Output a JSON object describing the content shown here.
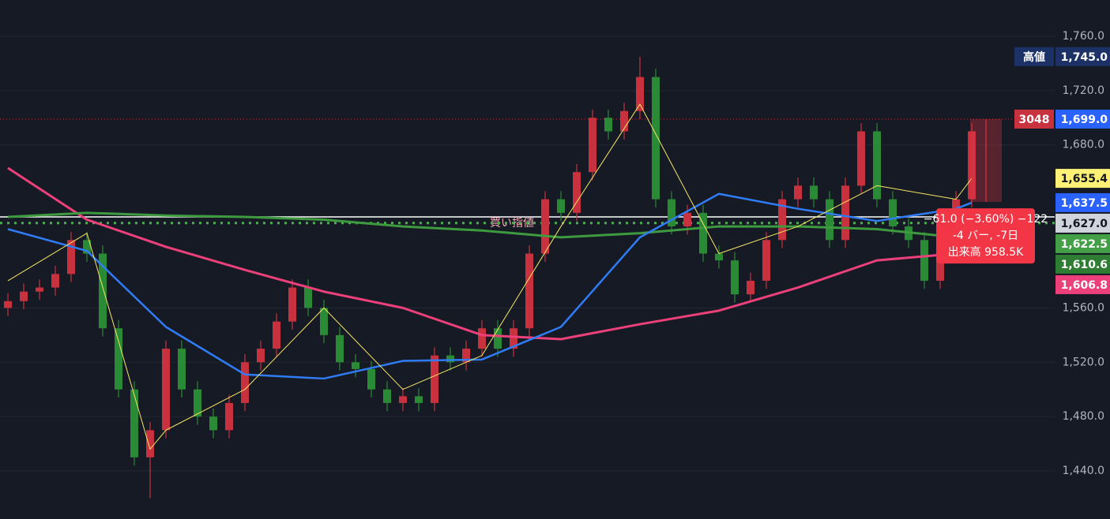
{
  "chart_data": {
    "type": "candlestick",
    "up_color": "#c8323f",
    "down_color": "#2b8a36",
    "ylim": [
      1404.6,
      1786.7
    ],
    "yticks": [
      {
        "value": 1440,
        "label": "1,440.0"
      },
      {
        "value": 1480,
        "label": "1,480.0"
      },
      {
        "value": 1520,
        "label": "1,520.0"
      },
      {
        "value": 1560,
        "label": "1,560.0"
      },
      {
        "value": 1680,
        "label": "1,680.0"
      },
      {
        "value": 1720,
        "label": "1,720.0"
      },
      {
        "value": 1760,
        "label": "1,760.0"
      }
    ],
    "grid": true,
    "open": [
      1560,
      1565,
      1572,
      1575,
      1585,
      1610,
      1600,
      1545,
      1500,
      1450,
      1470,
      1530,
      1500,
      1480,
      1470,
      1490,
      1520,
      1530,
      1550,
      1575,
      1560,
      1540,
      1520,
      1515,
      1500,
      1490,
      1495,
      1490,
      1525,
      1520,
      1530,
      1545,
      1530,
      1545,
      1600,
      1640,
      1630,
      1660,
      1700,
      1690,
      1705,
      1730,
      1640,
      1620,
      1630,
      1600,
      1595,
      1570,
      1580,
      1610,
      1640,
      1650,
      1640,
      1610,
      1650,
      1690,
      1640,
      1620,
      1610,
      1580,
      1600,
      1640
    ],
    "high": [
      1571,
      1578,
      1581,
      1591,
      1616,
      1616,
      1606,
      1551,
      1506,
      1476,
      1536,
      1536,
      1506,
      1486,
      1496,
      1526,
      1536,
      1556,
      1581,
      1581,
      1566,
      1546,
      1526,
      1521,
      1506,
      1501,
      1501,
      1531,
      1531,
      1536,
      1551,
      1551,
      1551,
      1606,
      1646,
      1646,
      1666,
      1706,
      1706,
      1711,
      1745,
      1736,
      1646,
      1636,
      1636,
      1606,
      1601,
      1586,
      1616,
      1646,
      1656,
      1656,
      1646,
      1656,
      1696,
      1696,
      1646,
      1626,
      1616,
      1606,
      1646,
      1696
    ],
    "low": [
      1554,
      1559,
      1566,
      1569,
      1579,
      1594,
      1539,
      1494,
      1444,
      1420,
      1464,
      1494,
      1474,
      1464,
      1464,
      1484,
      1514,
      1524,
      1544,
      1554,
      1534,
      1514,
      1509,
      1494,
      1484,
      1484,
      1484,
      1484,
      1514,
      1514,
      1524,
      1524,
      1524,
      1539,
      1594,
      1624,
      1624,
      1654,
      1684,
      1684,
      1699,
      1634,
      1614,
      1614,
      1594,
      1589,
      1564,
      1564,
      1574,
      1604,
      1634,
      1634,
      1604,
      1604,
      1644,
      1634,
      1614,
      1604,
      1574,
      1574,
      1594,
      1634
    ],
    "close": [
      1565,
      1572,
      1575,
      1585,
      1610,
      1600,
      1545,
      1500,
      1450,
      1470,
      1530,
      1500,
      1480,
      1470,
      1490,
      1520,
      1530,
      1550,
      1575,
      1560,
      1540,
      1520,
      1515,
      1500,
      1490,
      1495,
      1490,
      1525,
      1520,
      1530,
      1545,
      1530,
      1545,
      1600,
      1640,
      1630,
      1660,
      1700,
      1690,
      1705,
      1730,
      1640,
      1620,
      1630,
      1600,
      1595,
      1570,
      1580,
      1610,
      1640,
      1650,
      1640,
      1610,
      1650,
      1690,
      1640,
      1620,
      1610,
      1580,
      1600,
      1640,
      1690
    ],
    "series": [
      {
        "color": "#ec407a",
        "width": 3,
        "x": [
          0,
          5,
          10,
          15,
          20,
          25,
          30,
          35,
          40,
          45,
          50,
          55,
          60
        ],
        "values": [
          1663,
          1625,
          1605,
          1588,
          1572,
          1560,
          1540,
          1537,
          1548,
          1558,
          1575,
          1595,
          1600
        ]
      },
      {
        "color": "#3d9a3f",
        "width": 3,
        "x": [
          0,
          5,
          10,
          15,
          20,
          25,
          30,
          35,
          40,
          45,
          50,
          55,
          60
        ],
        "values": [
          1627,
          1630,
          1628,
          1627,
          1625,
          1620,
          1617,
          1612,
          1615,
          1620,
          1620,
          1618,
          1612
        ]
      },
      {
        "color": "#2f7cf6",
        "width": 2.5,
        "x": [
          0,
          5,
          10,
          15,
          20,
          25,
          30,
          35,
          40,
          45,
          50,
          55,
          60,
          61
        ],
        "values": [
          1618,
          1602,
          1546,
          1511,
          1508,
          1521,
          1522,
          1546,
          1612,
          1644,
          1633,
          1624,
          1633,
          1637.5
        ]
      },
      {
        "color": "#f5e663",
        "width": 1,
        "x": [
          0,
          5,
          9,
          10,
          15,
          20,
          25,
          30,
          35,
          40,
          45,
          50,
          55,
          60,
          61
        ],
        "values": [
          1580,
          1615,
          1456,
          1470,
          1500,
          1560,
          1500,
          1525,
          1620,
          1710,
          1600,
          1620,
          1650,
          1640,
          1655.4
        ]
      }
    ],
    "hlines": [
      {
        "value": 1627,
        "color": "#ffffff",
        "style": "solid",
        "label": "買い指値"
      },
      {
        "value": 1622.5,
        "color": "#4caf50",
        "style": "dotted"
      },
      {
        "value": 1699,
        "color": "#c8323f",
        "style": "dotted"
      }
    ],
    "price_tags": [
      {
        "value": 1745,
        "label": "1,745.0",
        "color": "#1c3266",
        "text_color": "#ffffff",
        "prefix": "高値",
        "prefix_color": "#1c3266"
      },
      {
        "value": 1699,
        "label": "1,699.0",
        "color": "#2962ff",
        "text_color": "#ffffff",
        "prefix": "3048",
        "prefix_color": "#c8323f"
      },
      {
        "value": 1655.4,
        "label": "1,655.4",
        "color": "#fff176",
        "text_color": "#131722"
      },
      {
        "value": 1637.5,
        "label": "1,637.5",
        "color": "#2962ff",
        "text_color": "#ffffff"
      },
      {
        "value": 1627,
        "label": "1,627.0",
        "color": "#d1d4dc",
        "text_color": "#131722"
      },
      {
        "value": 1622.5,
        "label": "1,622.5",
        "color": "#43a047",
        "text_color": "#ffffff"
      },
      {
        "value": 1610.6,
        "label": "1,610.6",
        "color": "#2e7d32",
        "text_color": "#ffffff"
      },
      {
        "value": 1606.8,
        "label": "1,606.8",
        "color": "#ec407a",
        "text_color": "#ffffff"
      }
    ],
    "measure": {
      "from": 1699,
      "to": 1638,
      "color": "#f23645",
      "lines": [
        "−61.0 (−3.60%) −122",
        "-4 バー, -7日",
        "出来高 958.5K"
      ]
    }
  }
}
